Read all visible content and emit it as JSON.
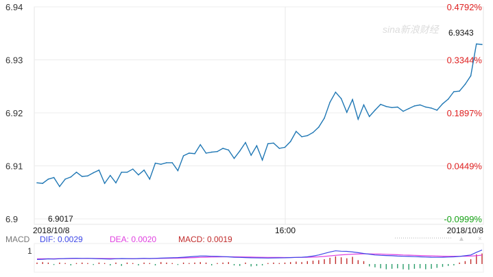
{
  "watermark": "sina新浪财经",
  "current_price_label": "6.9343",
  "low_price_label": "6.9017",
  "chart_data": [
    {
      "type": "line",
      "series": [
        {
          "values": [
            6.9068,
            6.9067,
            6.9075,
            6.9078,
            6.9061,
            6.9075,
            6.9079,
            6.9088,
            6.908,
            6.9081,
            6.9087,
            6.9092,
            6.9067,
            6.9082,
            6.9068,
            6.9088,
            6.9088,
            6.9094,
            6.9083,
            6.9092,
            6.9075,
            6.9105,
            6.9103,
            6.9106,
            6.9106,
            6.9091,
            6.9119,
            6.9124,
            6.9123,
            6.914,
            6.9124,
            6.9126,
            6.9127,
            6.9133,
            6.913,
            6.9114,
            6.9128,
            6.9144,
            6.912,
            6.9138,
            6.9111,
            6.9142,
            6.9143,
            6.9133,
            6.9135,
            6.9146,
            6.9165,
            6.9155,
            6.9157,
            6.9163,
            6.9173,
            6.919,
            6.922,
            6.9239,
            6.9227,
            6.9201,
            6.9225,
            6.9188,
            6.9215,
            6.9193,
            6.9205,
            6.9216,
            6.9212,
            6.921,
            6.9211,
            6.9203,
            6.9208,
            6.9213,
            6.9215,
            6.9211,
            6.9209,
            6.9205,
            6.9217,
            6.9226,
            6.924,
            6.9241,
            6.9254,
            6.927,
            6.933,
            6.9329
          ]
        }
      ],
      "ylim": [
        6.9,
        6.94
      ],
      "y_ticks": [
        "6.94",
        "6.93",
        "6.92",
        "6.91",
        "6.9"
      ],
      "right_ticks": [
        {
          "label": "0.4792%",
          "color": "#e02020"
        },
        {
          "label": "0.3344%",
          "color": "#e02020"
        },
        {
          "label": "0.1897%",
          "color": "#e02020"
        },
        {
          "label": "0.0449%",
          "color": "#e02020"
        },
        {
          "label": "-0.0999%",
          "color": "#17a317"
        }
      ],
      "x_labels": [
        "2018/10/8",
        "16:00",
        "2018/10/8"
      ],
      "line_color": "#1f77b4"
    },
    {
      "type": "bar",
      "legend": [
        {
          "label": "MACD",
          "color": "#777777"
        },
        {
          "label": "DIF: 0.0029",
          "color": "#3c46e6"
        },
        {
          "label": "DEA: 0.0020",
          "color": "#e040e0"
        },
        {
          "label": "MACD: 0.0019",
          "color": "#c02a2a"
        }
      ],
      "y_ticks": [
        "1"
      ],
      "macd": [
        0.3,
        0.4,
        0.3,
        -0.2,
        0.3,
        0.2,
        -0.3,
        0.2,
        0.3,
        0.2,
        -0.2,
        0.3,
        0.2,
        -0.3,
        0.3,
        -0.4,
        0.3,
        0.2,
        -0.3,
        0.3,
        0.2,
        -0.3,
        0.4,
        0.3,
        0.2,
        -0.2,
        0.3,
        0.2,
        0.3,
        0.4,
        0.3,
        -0.3,
        0.2,
        0.3,
        0.4,
        -0.3,
        -0.4,
        0.3,
        -0.5,
        -0.4,
        -0.3,
        0.2,
        0.3,
        0.2,
        0.3,
        0.4,
        0.5,
        0.4,
        0.6,
        0.7,
        0.8,
        1.0,
        1.3,
        1.6,
        1.4,
        1.2,
        1.5,
        0.8,
        0.6,
        -0.5,
        -0.7,
        -0.9,
        -1.1,
        -1.0,
        -0.9,
        -1.1,
        -1.2,
        -1.0,
        -0.9,
        -1.1,
        -1.0,
        -0.8,
        -0.6,
        -0.4,
        -0.3,
        0.3,
        0.6,
        1.0,
        2.0,
        2.2
      ],
      "dif": [
        0.3,
        0.35,
        0.45,
        0.4,
        0.5,
        0.55,
        0.6,
        0.62,
        0.58,
        0.6,
        0.55,
        0.5,
        0.45,
        0.4,
        0.5,
        0.55,
        0.52,
        0.5,
        0.55,
        0.6,
        0.55,
        0.6,
        0.65,
        0.7,
        0.75,
        0.8,
        0.9,
        1.0,
        1.1,
        1.2,
        1.2,
        1.15,
        1.1,
        1.05,
        1.0,
        0.9,
        0.85,
        0.8,
        0.75,
        0.72,
        0.7,
        0.68,
        0.7,
        0.72,
        0.75,
        0.8,
        0.85,
        0.9,
        1.0,
        1.2,
        1.5,
        1.9,
        2.3,
        2.6,
        2.5,
        2.45,
        2.3,
        2.1,
        1.9,
        1.7,
        1.5,
        1.4,
        1.35,
        1.3,
        1.2,
        1.15,
        1.1,
        1.05,
        1.0,
        0.95,
        0.9,
        0.88,
        0.9,
        0.95,
        1.0,
        1.1,
        1.3,
        1.5,
        2.2,
        2.8
      ],
      "dea": [
        0.45,
        0.47,
        0.48,
        0.5,
        0.52,
        0.53,
        0.55,
        0.56,
        0.57,
        0.57,
        0.57,
        0.56,
        0.55,
        0.54,
        0.53,
        0.53,
        0.52,
        0.52,
        0.53,
        0.54,
        0.55,
        0.56,
        0.58,
        0.6,
        0.63,
        0.66,
        0.7,
        0.75,
        0.8,
        0.85,
        0.9,
        0.95,
        0.98,
        1.0,
        1.0,
        1.0,
        0.98,
        0.96,
        0.93,
        0.9,
        0.88,
        0.86,
        0.84,
        0.83,
        0.82,
        0.82,
        0.83,
        0.85,
        0.88,
        0.93,
        1.0,
        1.1,
        1.25,
        1.4,
        1.52,
        1.62,
        1.7,
        1.75,
        1.78,
        1.78,
        1.76,
        1.72,
        1.68,
        1.62,
        1.56,
        1.5,
        1.45,
        1.4,
        1.35,
        1.3,
        1.25,
        1.2,
        1.17,
        1.15,
        1.14,
        1.14,
        1.16,
        1.2,
        1.3,
        1.45
      ]
    }
  ]
}
